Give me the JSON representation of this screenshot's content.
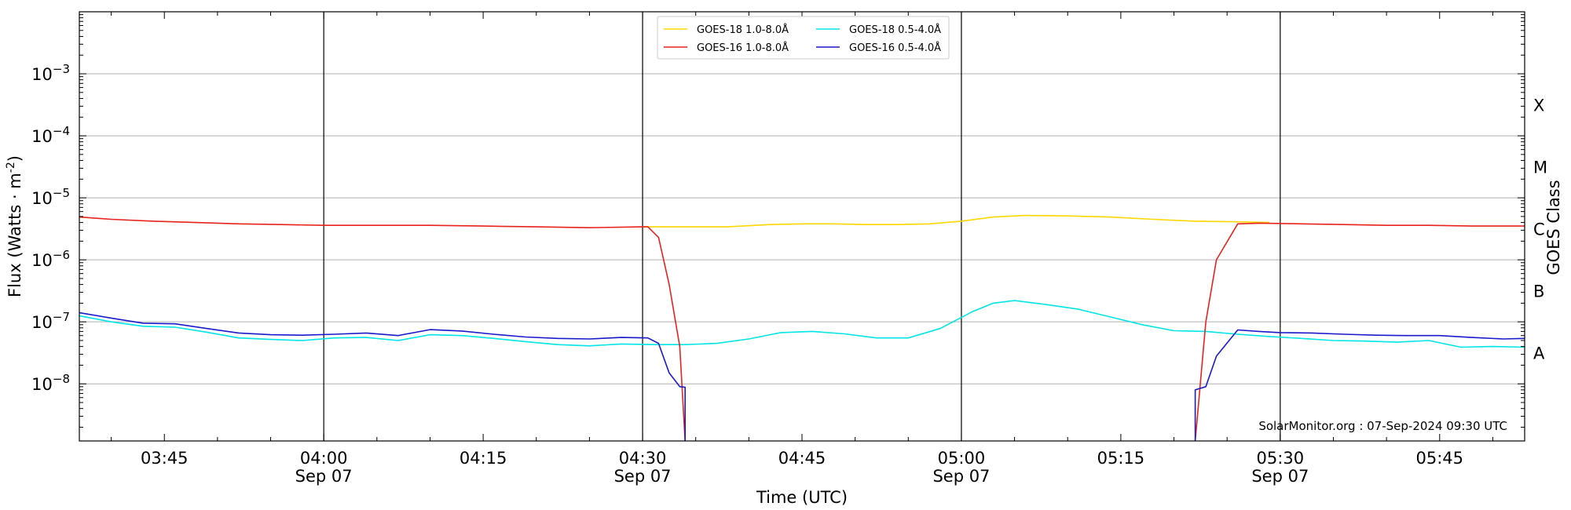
{
  "chart_data": {
    "type": "line",
    "xlabel": "Time (UTC)",
    "ylabel": "Flux (Watts · m",
    "ylabel_sup": "-2",
    "ylabel_end": ")",
    "y2label": "GOES Class",
    "yscale": "log",
    "ylim": [
      1.2e-09,
      0.01
    ],
    "xlim": [
      "03:37",
      "05:53"
    ],
    "grid": "horizontal",
    "legend_position": "top-center",
    "credit": "SolarMonitor.org : 07-Sep-2024 09:30 UTC",
    "xticks": [
      {
        "t": "03:45",
        "label": "03:45",
        "sub": ""
      },
      {
        "t": "04:00",
        "label": "04:00",
        "sub": "Sep 07"
      },
      {
        "t": "04:15",
        "label": "04:15",
        "sub": ""
      },
      {
        "t": "04:30",
        "label": "04:30",
        "sub": "Sep 07"
      },
      {
        "t": "04:45",
        "label": "04:45",
        "sub": ""
      },
      {
        "t": "05:00",
        "label": "05:00",
        "sub": "Sep 07"
      },
      {
        "t": "05:15",
        "label": "05:15",
        "sub": ""
      },
      {
        "t": "05:30",
        "label": "05:30",
        "sub": "Sep 07"
      },
      {
        "t": "05:45",
        "label": "05:45",
        "sub": ""
      }
    ],
    "day_lines": [
      "04:00",
      "04:30",
      "05:00",
      "05:30"
    ],
    "yticks": [
      {
        "v": 1e-08,
        "base": "10",
        "exp": "−8"
      },
      {
        "v": 1e-07,
        "base": "10",
        "exp": "−7"
      },
      {
        "v": 1e-06,
        "base": "10",
        "exp": "−6"
      },
      {
        "v": 1e-05,
        "base": "10",
        "exp": "−5"
      },
      {
        "v": 0.0001,
        "base": "10",
        "exp": "−4"
      },
      {
        "v": 0.001,
        "base": "10",
        "exp": "−3"
      }
    ],
    "goes_classes": [
      {
        "label": "X",
        "v": 0.0001
      },
      {
        "label": "M",
        "v": 1e-05
      },
      {
        "label": "C",
        "v": 1e-06
      },
      {
        "label": "B",
        "v": 1e-07
      },
      {
        "label": "A",
        "v": 1e-08
      }
    ],
    "series": [
      {
        "name": "GOES-18 1.0-8.0Å",
        "color": "#ffd700",
        "points": [
          [
            "04:30",
            3.4e-06
          ],
          [
            "04:35",
            3.4e-06
          ],
          [
            "04:38",
            3.4e-06
          ],
          [
            "04:42",
            3.7e-06
          ],
          [
            "04:45",
            3.8e-06
          ],
          [
            "04:48",
            3.8e-06
          ],
          [
            "04:51",
            3.7e-06
          ],
          [
            "04:54",
            3.7e-06
          ],
          [
            "04:57",
            3.8e-06
          ],
          [
            "05:00",
            4.2e-06
          ],
          [
            "05:03",
            4.9e-06
          ],
          [
            "05:06",
            5.2e-06
          ],
          [
            "05:10",
            5.1e-06
          ],
          [
            "05:14",
            4.9e-06
          ],
          [
            "05:18",
            4.5e-06
          ],
          [
            "05:22",
            4.2e-06
          ],
          [
            "05:26",
            4.1e-06
          ],
          [
            "05:29",
            4e-06
          ]
        ]
      },
      {
        "name": "GOES-18 0.5-4.0Å",
        "color": "#00e5e5",
        "points": [
          [
            "03:37",
            1.25e-07
          ],
          [
            "03:40",
            1e-07
          ],
          [
            "03:43",
            8.5e-08
          ],
          [
            "03:46",
            8.2e-08
          ],
          [
            "03:49",
            6.8e-08
          ],
          [
            "03:52",
            5.5e-08
          ],
          [
            "03:55",
            5.2e-08
          ],
          [
            "03:58",
            5e-08
          ],
          [
            "04:01",
            5.5e-08
          ],
          [
            "04:04",
            5.6e-08
          ],
          [
            "04:07",
            5e-08
          ],
          [
            "04:10",
            6.2e-08
          ],
          [
            "04:13",
            6e-08
          ],
          [
            "04:16",
            5.4e-08
          ],
          [
            "04:19",
            4.8e-08
          ],
          [
            "04:22",
            4.3e-08
          ],
          [
            "04:25",
            4.1e-08
          ],
          [
            "04:28",
            4.4e-08
          ],
          [
            "04:31",
            4.3e-08
          ],
          [
            "04:34",
            4.3e-08
          ],
          [
            "04:37",
            4.5e-08
          ],
          [
            "04:40",
            5.3e-08
          ],
          [
            "04:43",
            6.7e-08
          ],
          [
            "04:46",
            7e-08
          ],
          [
            "04:49",
            6.4e-08
          ],
          [
            "04:52",
            5.5e-08
          ],
          [
            "04:55",
            5.5e-08
          ],
          [
            "04:58",
            7.8e-08
          ],
          [
            "05:01",
            1.45e-07
          ],
          [
            "05:03",
            2e-07
          ],
          [
            "05:05",
            2.2e-07
          ],
          [
            "05:08",
            1.9e-07
          ],
          [
            "05:11",
            1.6e-07
          ],
          [
            "05:14",
            1.2e-07
          ],
          [
            "05:17",
            9e-08
          ],
          [
            "05:20",
            7.2e-08
          ],
          [
            "05:23",
            7e-08
          ],
          [
            "05:26",
            6.3e-08
          ],
          [
            "05:29",
            5.8e-08
          ],
          [
            "05:32",
            5.4e-08
          ],
          [
            "05:35",
            5e-08
          ],
          [
            "05:38",
            4.9e-08
          ],
          [
            "05:41",
            4.7e-08
          ],
          [
            "05:44",
            5e-08
          ],
          [
            "05:47",
            3.9e-08
          ],
          [
            "05:50",
            4e-08
          ],
          [
            "05:53",
            3.9e-08
          ]
        ]
      },
      {
        "name": "GOES-16 1.0-8.0Å",
        "color": "#e8221c",
        "points": [
          [
            "03:37",
            4.9e-06
          ],
          [
            "03:40",
            4.5e-06
          ],
          [
            "03:44",
            4.2e-06
          ],
          [
            "03:48",
            4e-06
          ],
          [
            "03:52",
            3.8e-06
          ],
          [
            "03:56",
            3.7e-06
          ],
          [
            "04:00",
            3.6e-06
          ],
          [
            "04:05",
            3.6e-06
          ],
          [
            "04:10",
            3.6e-06
          ],
          [
            "04:15",
            3.5e-06
          ],
          [
            "04:20",
            3.4e-06
          ],
          [
            "04:25",
            3.3e-06
          ],
          [
            "04:30",
            3.4e-06
          ],
          [
            "04:30.5",
            3.4e-06
          ],
          [
            "04:31.5",
            2.3e-06
          ],
          [
            "04:32.5",
            4e-07
          ],
          [
            "04:33.5",
            4e-08
          ],
          [
            "04:34",
            1.2e-09
          ],
          null,
          [
            "05:22",
            1.2e-09
          ],
          [
            "05:23",
            1e-07
          ],
          [
            "05:24",
            1e-06
          ],
          [
            "05:26",
            3.8e-06
          ],
          [
            "05:28",
            3.9e-06
          ],
          [
            "05:32",
            3.8e-06
          ],
          [
            "05:36",
            3.7e-06
          ],
          [
            "05:40",
            3.6e-06
          ],
          [
            "05:44",
            3.6e-06
          ],
          [
            "05:48",
            3.5e-06
          ],
          [
            "05:53",
            3.5e-06
          ]
        ]
      },
      {
        "name": "GOES-16 0.5-4.0Å",
        "color": "#1a1acc",
        "points": [
          [
            "03:37",
            1.4e-07
          ],
          [
            "03:40",
            1.15e-07
          ],
          [
            "03:43",
            9.5e-08
          ],
          [
            "03:46",
            9.3e-08
          ],
          [
            "03:49",
            7.8e-08
          ],
          [
            "03:52",
            6.6e-08
          ],
          [
            "03:55",
            6.2e-08
          ],
          [
            "03:58",
            6.1e-08
          ],
          [
            "04:01",
            6.3e-08
          ],
          [
            "04:04",
            6.6e-08
          ],
          [
            "04:07",
            6e-08
          ],
          [
            "04:10",
            7.5e-08
          ],
          [
            "04:13",
            7.1e-08
          ],
          [
            "04:16",
            6.3e-08
          ],
          [
            "04:19",
            5.7e-08
          ],
          [
            "04:22",
            5.4e-08
          ],
          [
            "04:25",
            5.3e-08
          ],
          [
            "04:28",
            5.6e-08
          ],
          [
            "04:30.5",
            5.5e-08
          ],
          [
            "04:31.5",
            4.5e-08
          ],
          [
            "04:32.5",
            1.5e-08
          ],
          [
            "04:33.5",
            9e-09
          ],
          [
            "04:34",
            8.8e-09
          ],
          [
            "04:34",
            1.2e-09
          ],
          null,
          [
            "05:22",
            1.2e-09
          ],
          [
            "05:22",
            8e-09
          ],
          [
            "05:23",
            9e-09
          ],
          [
            "05:24",
            2.8e-08
          ],
          [
            "05:26",
            7.4e-08
          ],
          [
            "05:28",
            7e-08
          ],
          [
            "05:30",
            6.7e-08
          ],
          [
            "05:33",
            6.6e-08
          ],
          [
            "05:36",
            6.3e-08
          ],
          [
            "05:39",
            6.1e-08
          ],
          [
            "05:42",
            6e-08
          ],
          [
            "05:45",
            6e-08
          ],
          [
            "05:48",
            5.6e-08
          ],
          [
            "05:51",
            5.3e-08
          ],
          [
            "05:53",
            5.4e-08
          ]
        ]
      }
    ]
  }
}
